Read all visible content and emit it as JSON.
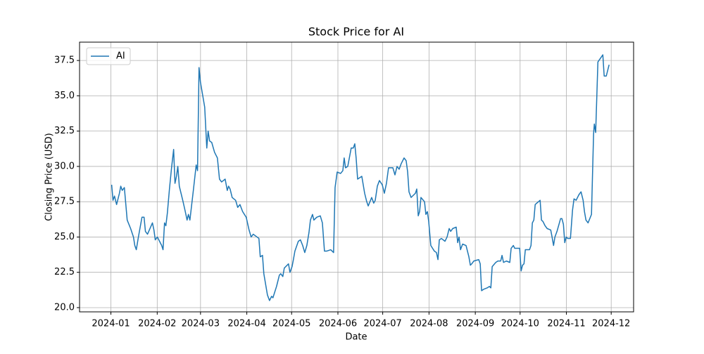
{
  "chart_data": {
    "type": "line",
    "title": "Stock Price for AI",
    "xlabel": "Date",
    "ylabel": "Closing Price (USD)",
    "x": [
      0.5,
      1.4,
      2.4,
      3.8,
      5.7,
      6.6,
      7.6,
      9.0,
      10.9,
      13.2,
      15.1,
      16.0,
      17.0,
      18.4,
      20.8,
      22.2,
      23.1,
      24.5,
      27.8,
      28.8,
      29.7,
      31.1,
      34.0,
      34.9,
      35.9,
      36.8,
      37.8,
      39.2,
      40.6,
      42.0,
      42.9,
      43.9,
      44.8,
      45.8,
      48.1,
      49.6,
      51.0,
      51.9,
      52.9,
      55.2,
      57.1,
      58.0,
      59.0,
      59.9,
      62.8,
      64.2,
      65.1,
      66.1,
      67.5,
      69.4,
      71.3,
      72.7,
      74.1,
      76.5,
      77.9,
      78.8,
      79.8,
      81.2,
      83.5,
      84.9,
      86.4,
      88.2,
      90.6,
      92.5,
      93.9,
      95.3,
      99.1,
      100.0,
      101.5,
      102.4,
      104.8,
      106.2,
      107.6,
      108.5,
      110.9,
      112.8,
      113.7,
      115.1,
      116.1,
      118.9,
      119.9,
      121.3,
      122.2,
      123.2,
      125.5,
      126.9,
      128.4,
      129.8,
      131.2,
      132.6,
      133.6,
      135.0,
      135.9,
      137.8,
      140.2,
      141.6,
      143.0,
      144.4,
      147.2,
      149.1,
      150.1,
      151.5,
      153.8,
      155.3,
      156.2,
      157.1,
      158.6,
      160.9,
      162.3,
      163.3,
      164.2,
      165.2,
      168.0,
      169.9,
      171.3,
      172.3,
      174.6,
      176.0,
      177.0,
      178.4,
      179.8,
      181.7,
      183.1,
      184.5,
      185.9,
      188.8,
      190.2,
      191.6,
      193.0,
      194.4,
      196.3,
      197.7,
      198.7,
      199.6,
      201.0,
      203.9,
      204.8,
      205.8,
      206.7,
      207.6,
      210.0,
      210.9,
      211.9,
      212.8,
      214.2,
      216.6,
      218.0,
      219.0,
      219.9,
      221.3,
      223.7,
      225.1,
      226.5,
      227.5,
      228.9,
      231.2,
      232.2,
      233.1,
      234.1,
      235.5,
      237.8,
      239.7,
      240.7,
      241.6,
      243.0,
      246.3,
      247.3,
      248.2,
      249.6,
      252.0,
      253.4,
      254.4,
      255.3,
      257.7,
      259.1,
      261.0,
      261.9,
      262.9,
      264.8,
      267.1,
      268.0,
      269.5,
      270.4,
      273.7,
      274.7,
      275.6,
      276.6,
      277.5,
      280.3,
      281.3,
      282.2,
      283.2,
      284.1,
      287.4,
      288.3,
      289.3,
      290.7,
      292.1,
      294.5,
      295.4,
      296.4,
      297.3,
      298.7,
      301.1,
      302.0,
      303.0,
      303.9,
      304.9,
      305.8,
      307.7,
      309.1,
      310.1,
      311.5,
      313.4,
      314.8,
      316.2,
      317.1,
      318.1,
      319.5,
      321.8,
      323.2,
      323.7,
      324.6,
      326.1,
      329.4,
      330.3,
      331.7,
      333.6
    ],
    "series": [
      {
        "name": "AI",
        "color": "#1f77b4",
        "values": [
          28.7,
          27.6,
          27.9,
          27.3,
          28.1,
          28.6,
          28.3,
          28.5,
          26.2,
          25.6,
          25.0,
          24.4,
          24.1,
          25.0,
          26.4,
          26.4,
          25.4,
          25.2,
          26.0,
          25.5,
          24.8,
          25.0,
          24.4,
          24.1,
          26.0,
          25.8,
          26.7,
          28.4,
          29.9,
          31.2,
          28.8,
          29.3,
          30.0,
          28.6,
          27.6,
          26.9,
          26.2,
          26.6,
          26.2,
          28.3,
          30.1,
          29.7,
          37.0,
          36.0,
          34.2,
          31.3,
          32.5,
          31.8,
          31.7,
          31.0,
          30.6,
          29.1,
          28.9,
          29.1,
          28.3,
          28.6,
          28.4,
          27.8,
          27.6,
          27.1,
          27.3,
          26.8,
          26.4,
          25.5,
          25.0,
          25.2,
          24.9,
          23.6,
          23.7,
          22.4,
          20.9,
          20.5,
          20.8,
          20.7,
          21.5,
          22.3,
          22.4,
          22.2,
          22.8,
          23.1,
          22.5,
          22.9,
          23.4,
          24.0,
          24.7,
          24.8,
          24.4,
          23.9,
          24.4,
          25.3,
          26.2,
          26.6,
          26.2,
          26.4,
          26.5,
          26.0,
          24.0,
          24.0,
          24.1,
          23.9,
          28.5,
          29.6,
          29.5,
          29.7,
          30.6,
          29.9,
          30.0,
          31.3,
          31.3,
          31.6,
          30.6,
          29.1,
          29.3,
          28.1,
          27.5,
          27.2,
          27.8,
          27.4,
          27.6,
          28.6,
          29.0,
          28.7,
          28.1,
          28.8,
          29.9,
          29.9,
          29.4,
          30.0,
          29.8,
          30.2,
          30.6,
          30.4,
          29.6,
          28.2,
          27.8,
          28.1,
          28.4,
          26.5,
          26.8,
          27.8,
          27.5,
          26.6,
          26.8,
          26.1,
          24.4,
          24.0,
          23.9,
          23.4,
          24.8,
          24.9,
          24.7,
          25.0,
          25.6,
          25.4,
          25.6,
          25.7,
          24.6,
          25.0,
          24.1,
          24.5,
          24.4,
          23.6,
          23.0,
          23.1,
          23.3,
          23.4,
          23.1,
          21.2,
          21.3,
          21.4,
          21.5,
          21.4,
          22.9,
          23.2,
          23.3,
          23.3,
          23.7,
          23.2,
          23.3,
          23.2,
          24.2,
          24.4,
          24.2,
          24.2,
          22.6,
          23.0,
          23.1,
          24.1,
          24.1,
          24.4,
          26.0,
          26.2,
          27.3,
          27.6,
          26.2,
          26.1,
          25.8,
          25.6,
          25.5,
          25.0,
          24.4,
          25.0,
          25.4,
          26.3,
          26.3,
          25.9,
          24.6,
          25.0,
          24.9,
          24.9,
          26.9,
          27.7,
          27.6,
          28.0,
          28.2,
          27.6,
          26.8,
          26.2,
          26.0,
          26.6,
          32.3,
          33.0,
          32.4,
          37.4,
          37.9,
          36.4,
          36.4,
          37.2
        ]
      }
    ],
    "xlim": [
      -21,
      350
    ],
    "xticks": [
      {
        "value": 0,
        "label": "2024-01"
      },
      {
        "value": 31,
        "label": "2024-02"
      },
      {
        "value": 60,
        "label": "2024-03"
      },
      {
        "value": 91,
        "label": "2024-04"
      },
      {
        "value": 121,
        "label": "2024-05"
      },
      {
        "value": 152,
        "label": "2024-06"
      },
      {
        "value": 182,
        "label": "2024-07"
      },
      {
        "value": 213,
        "label": "2024-08"
      },
      {
        "value": 244,
        "label": "2024-09"
      },
      {
        "value": 274,
        "label": "2024-10"
      },
      {
        "value": 305,
        "label": "2024-11"
      },
      {
        "value": 335,
        "label": "2024-12"
      }
    ],
    "ylim": [
      19.7,
      38.8
    ],
    "yticks": [
      {
        "value": 20,
        "label": "20.0"
      },
      22.5,
      {
        "value": 25,
        "label": "25.0"
      },
      27.5,
      {
        "value": 30,
        "label": "30.0"
      },
      32.5,
      {
        "value": 35,
        "label": "35.0"
      },
      37.5
    ],
    "grid": true,
    "legend": "upper-left"
  }
}
